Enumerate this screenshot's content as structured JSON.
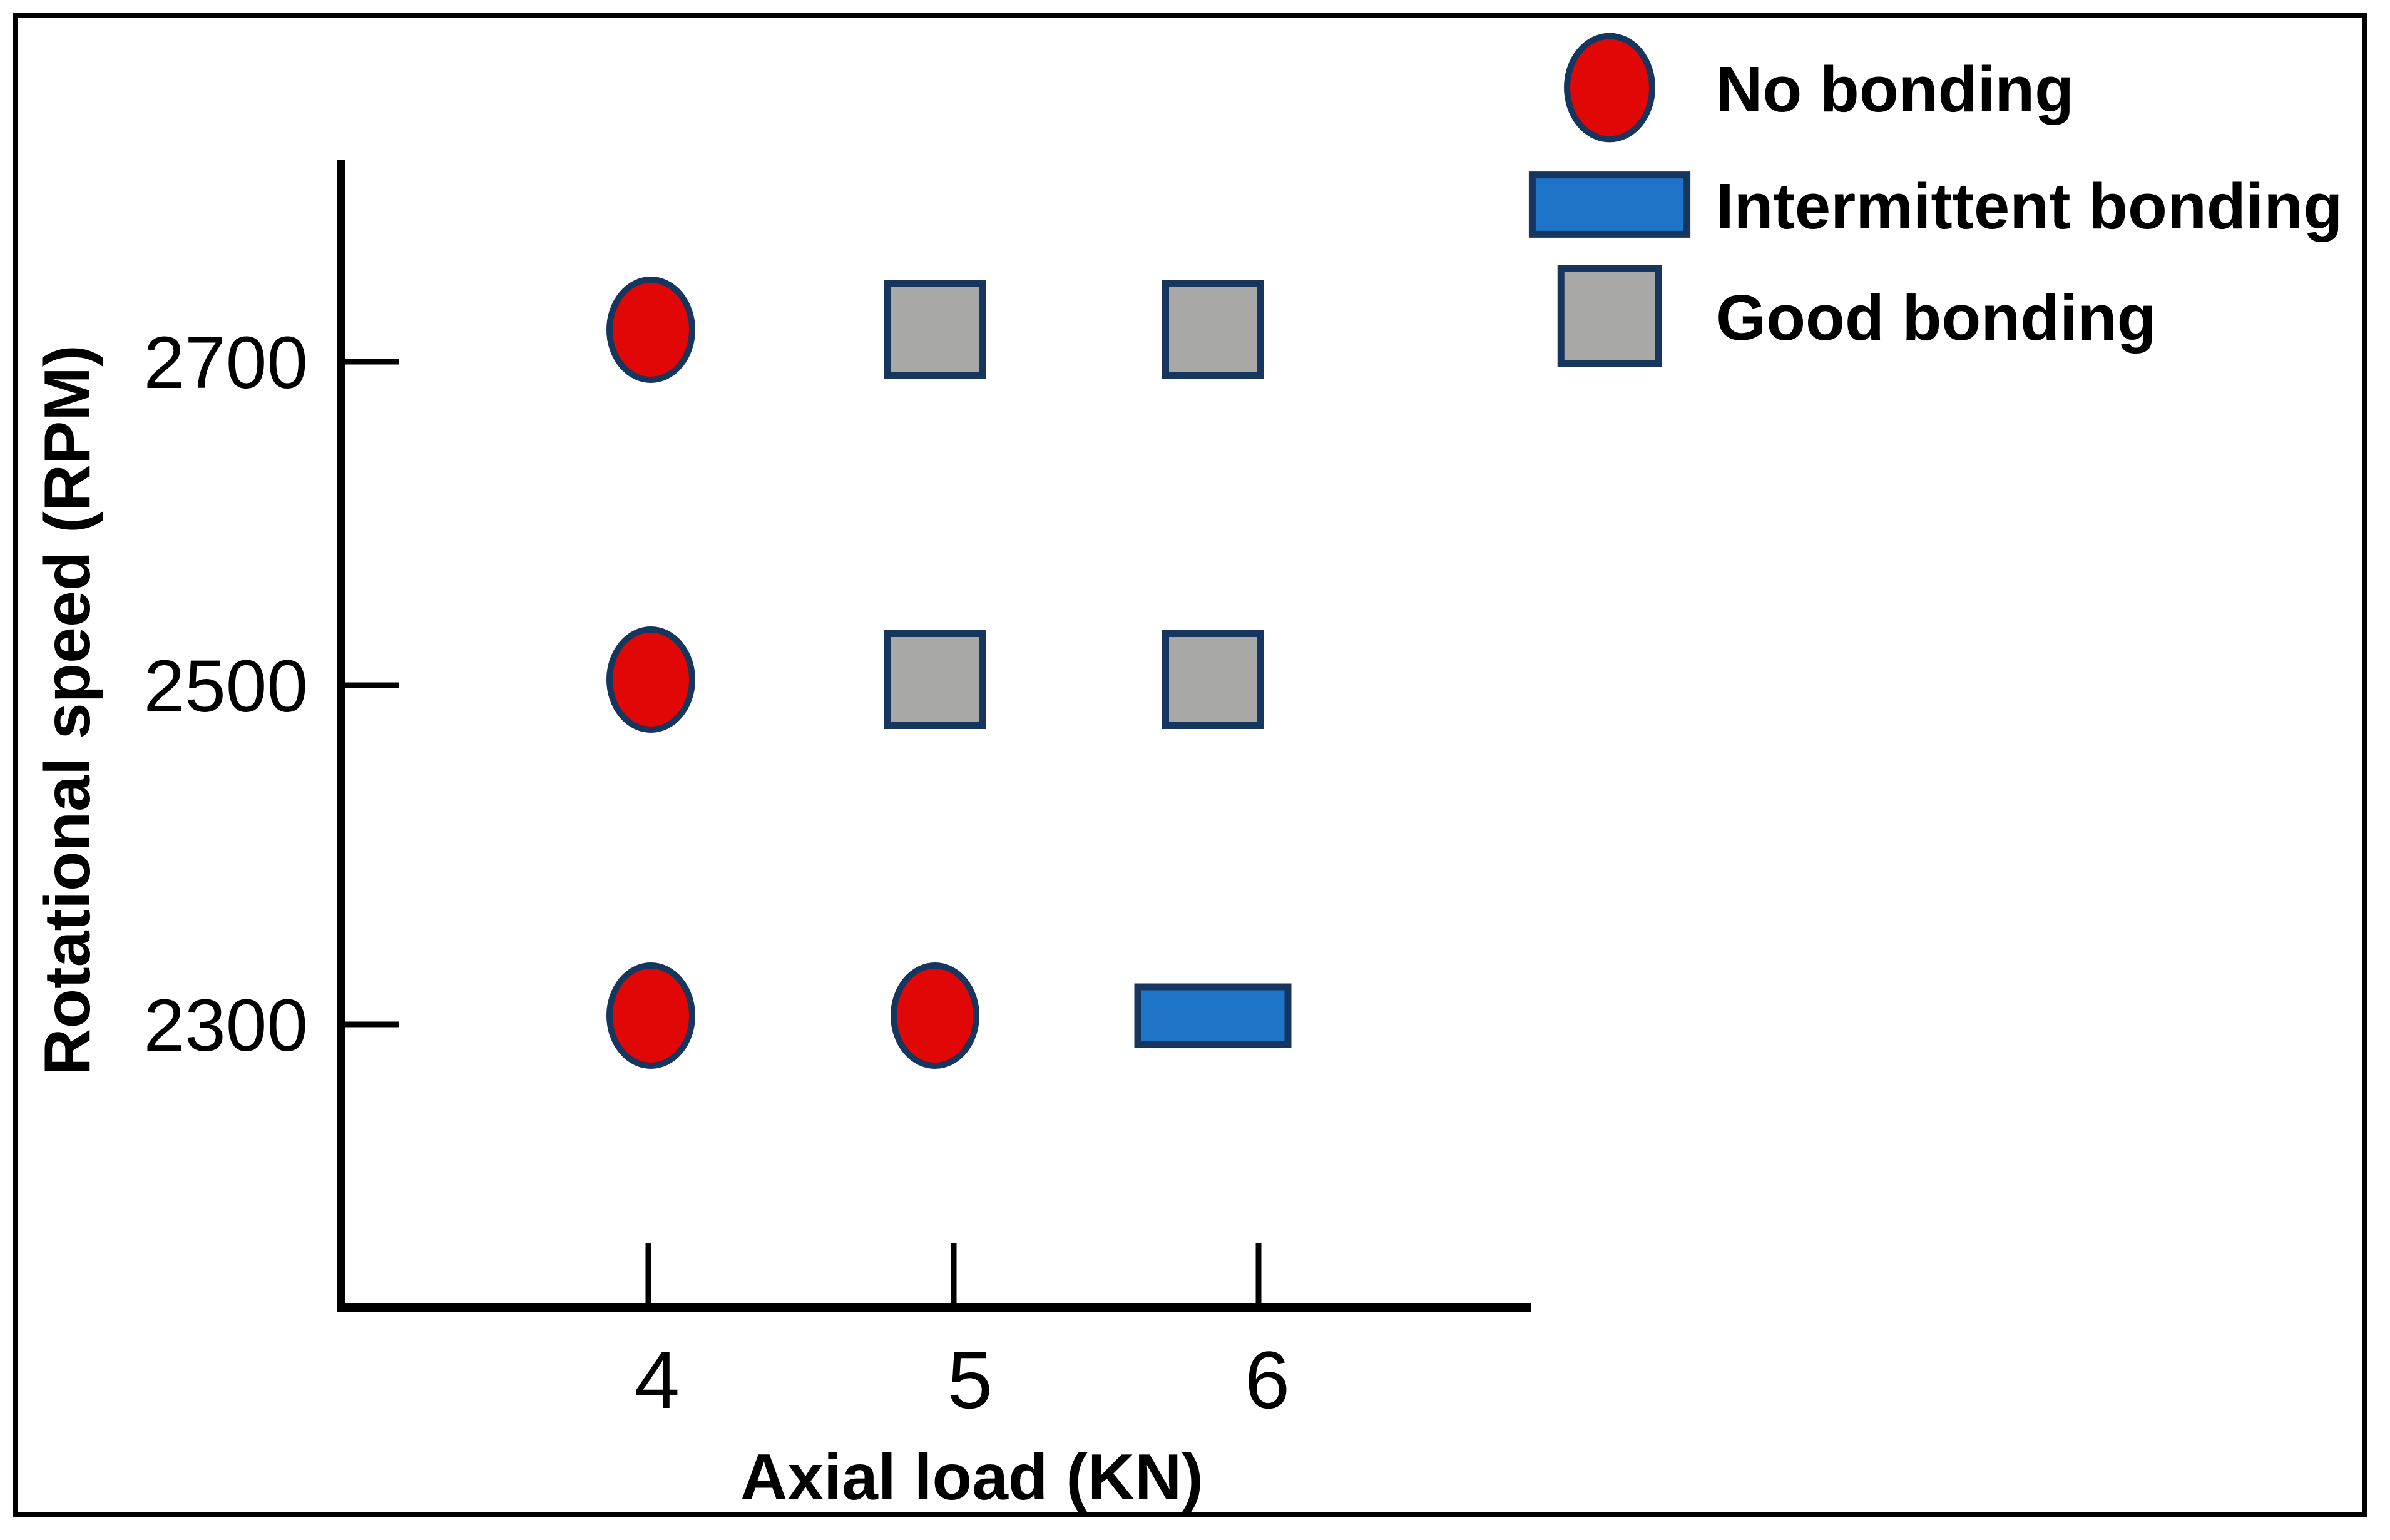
{
  "figure": {
    "background_color": "#ffffff",
    "frame_border_color": "#000000"
  },
  "chart_data": {
    "type": "scatter",
    "title": "",
    "xlabel": "Axial load (KN)",
    "ylabel": "Rotational speed (RPM)",
    "x_ticks": [
      4,
      5,
      6
    ],
    "x_tick_labels": [
      "4",
      "5",
      "6"
    ],
    "y_ticks": [
      2700,
      2500,
      2300
    ],
    "y_tick_labels": [
      "2700",
      "2500",
      "2300"
    ],
    "axis_color": "#000000",
    "marker_outline_color": "#17365d",
    "grid": "off",
    "legend_position": "top-right",
    "series": [
      {
        "name": "No bonding",
        "marker": "ellipse",
        "fill": "#e10707",
        "points": [
          {
            "x": 4,
            "y": 2700
          },
          {
            "x": 4,
            "y": 2500
          },
          {
            "x": 4,
            "y": 2300
          },
          {
            "x": 5,
            "y": 2300
          }
        ]
      },
      {
        "name": "Intermittent bonding",
        "marker": "rect-wide",
        "fill": "#1e74c9",
        "points": [
          {
            "x": 6,
            "y": 2300
          }
        ]
      },
      {
        "name": "Good bonding",
        "marker": "rect-square",
        "fill": "#a8a8a6",
        "points": [
          {
            "x": 5,
            "y": 2700
          },
          {
            "x": 6,
            "y": 2700
          },
          {
            "x": 5,
            "y": 2500
          },
          {
            "x": 6,
            "y": 2500
          }
        ]
      }
    ],
    "legend": [
      {
        "label": "No bonding",
        "marker": "ellipse",
        "fill": "#e10707"
      },
      {
        "label": "Intermittent bonding",
        "marker": "rect-wide",
        "fill": "#1e74c9"
      },
      {
        "label": "Good bonding",
        "marker": "rect-square",
        "fill": "#a8a8a6"
      }
    ]
  }
}
